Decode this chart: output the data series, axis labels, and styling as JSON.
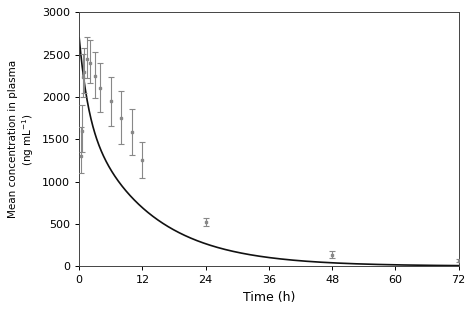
{
  "time_points": [
    0.25,
    0.5,
    0.75,
    1.0,
    1.5,
    2.0,
    3.0,
    4.0,
    6.0,
    8.0,
    10.0,
    12.0,
    24.0,
    48.0,
    72.0
  ],
  "mean_values": [
    1300,
    1600,
    2230,
    2300,
    2450,
    2400,
    2250,
    2100,
    1950,
    1750,
    1580,
    1250,
    520,
    135,
    60
  ],
  "error_lower": [
    200,
    250,
    230,
    250,
    230,
    240,
    260,
    280,
    290,
    310,
    270,
    210,
    50,
    35,
    15
  ],
  "error_upper": [
    350,
    300,
    280,
    280,
    260,
    270,
    280,
    300,
    290,
    320,
    280,
    220,
    50,
    40,
    20
  ],
  "xlabel": "Time (h)",
  "ylabel": "Mean concentration in plasma (ng mL-1)",
  "xlim": [
    0,
    72
  ],
  "ylim": [
    0,
    3000
  ],
  "xticks": [
    0,
    12,
    24,
    36,
    48,
    60,
    72
  ],
  "yticks": [
    0,
    500,
    1000,
    1500,
    2000,
    2500,
    3000
  ],
  "line_color": "#111111",
  "errorbar_color": "#888888",
  "background_color": "#ffffff",
  "fig_width": 4.74,
  "fig_height": 3.12,
  "dpi": 100,
  "biexp_A": 1800,
  "biexp_alpha": 0.08,
  "biexp_B": 900,
  "biexp_beta": 0.6
}
